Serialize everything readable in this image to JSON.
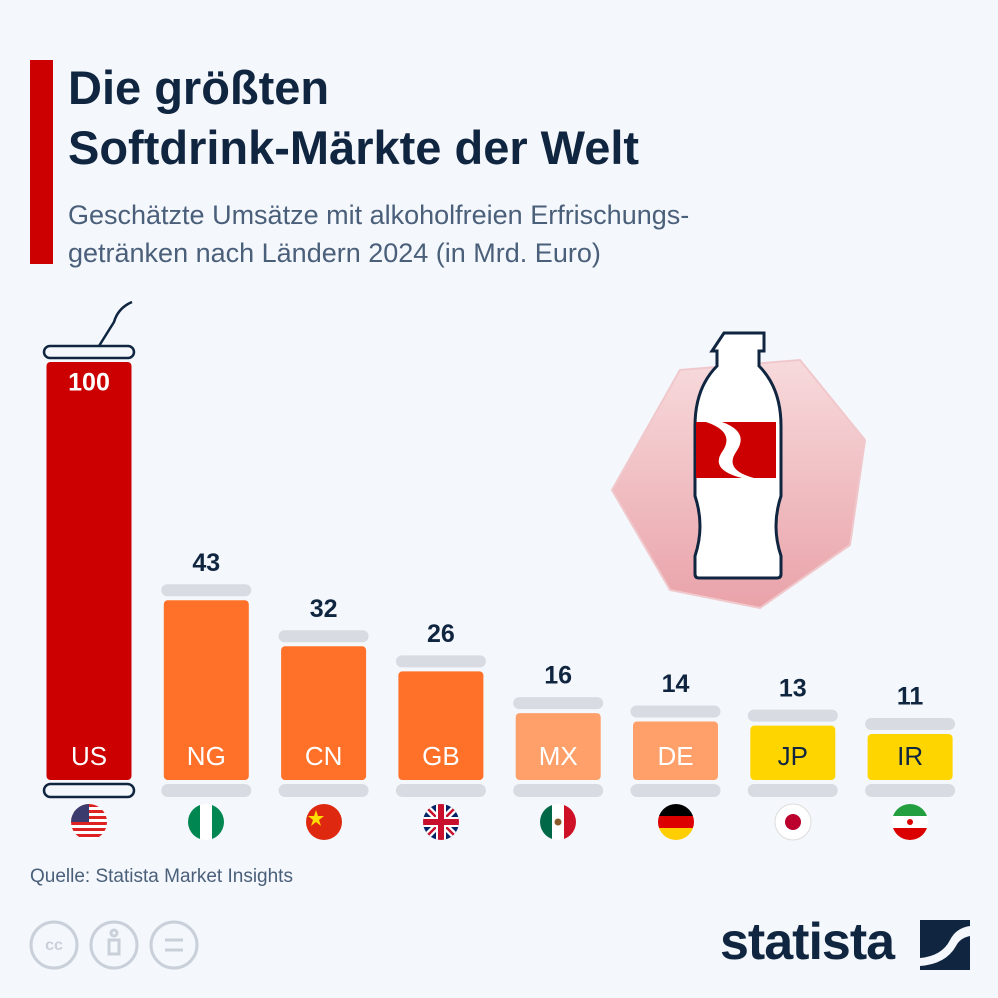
{
  "chart_data": {
    "type": "bar",
    "title_lines": [
      "Die größten",
      "Softdrink-Märkte der Welt"
    ],
    "subtitle_lines": [
      "Geschätzte Umsätze mit alkoholfreien Erfrischungs-",
      "getränken nach Ländern 2024 (in Mrd. Euro)"
    ],
    "categories": [
      "US",
      "NG",
      "CN",
      "GB",
      "MX",
      "DE",
      "JP",
      "IR"
    ],
    "values": [
      100,
      43,
      32,
      26,
      16,
      14,
      13,
      11
    ],
    "colors": [
      "#cc0000",
      "#ff7028",
      "#ff7028",
      "#ff7028",
      "#ffa06a",
      "#ffa06a",
      "#ffd500",
      "#ffd500"
    ],
    "source": "Quelle: Statista Market Insights",
    "brand": "statista"
  }
}
